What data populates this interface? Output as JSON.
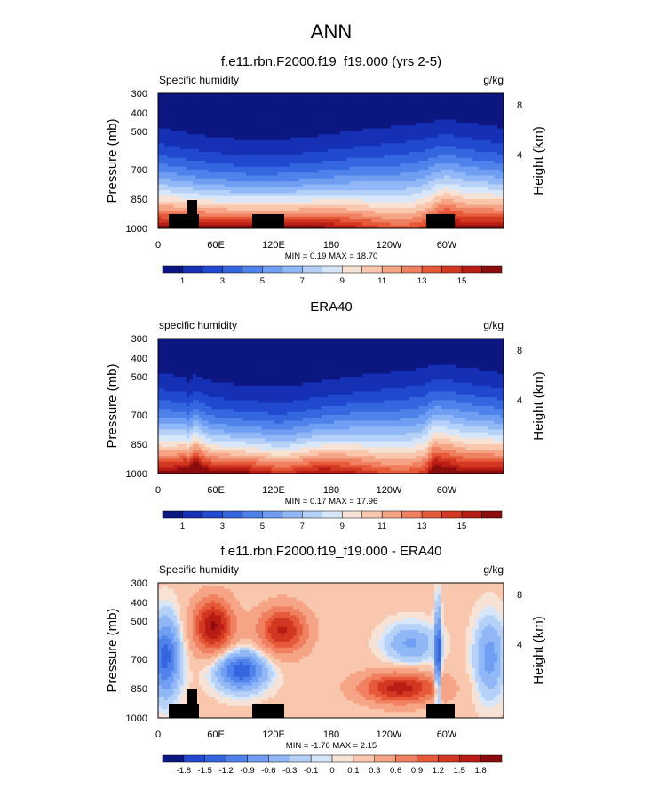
{
  "figure": {
    "title": "ANN",
    "right_axis_label": "Height (km)",
    "left_axis_label": "Pressure (mb)"
  },
  "chart_data": [
    {
      "type": "heatmap",
      "title": "f.e11.rbn.F2000.f19_f19.000 (yrs 2-5)",
      "variable_label": "Specific humidity",
      "units": "g/kg",
      "ylabel": "Pressure (mb)",
      "y2label": "Height (km)",
      "x_ticks": [
        "0",
        "60E",
        "120E",
        "180",
        "120W",
        "60W"
      ],
      "y_ticks": [
        "300",
        "400",
        "500",
        "700",
        "850",
        "1000"
      ],
      "y2_ticks": [
        "8",
        "4"
      ],
      "stats": "MIN =  0.19  MAX =  18.70",
      "colorbar_labels": [
        "1",
        "3",
        "5",
        "7",
        "9",
        "11",
        "13",
        "15"
      ],
      "levels": [
        1,
        2,
        3,
        4,
        5,
        6,
        7,
        8,
        9,
        10,
        11,
        12,
        13,
        14,
        15,
        16
      ]
    },
    {
      "type": "heatmap",
      "title": "ERA40",
      "variable_label": "specific humidity",
      "units": "g/kg",
      "ylabel": "Pressure (mb)",
      "y2label": "Height (km)",
      "x_ticks": [
        "0",
        "60E",
        "120E",
        "180",
        "120W",
        "60W"
      ],
      "y_ticks": [
        "300",
        "400",
        "500",
        "700",
        "850",
        "1000"
      ],
      "y2_ticks": [
        "8",
        "4"
      ],
      "stats": "MIN =  0.17  MAX =  17.96",
      "colorbar_labels": [
        "1",
        "3",
        "5",
        "7",
        "9",
        "11",
        "13",
        "15"
      ],
      "levels": [
        1,
        2,
        3,
        4,
        5,
        6,
        7,
        8,
        9,
        10,
        11,
        12,
        13,
        14,
        15,
        16
      ]
    },
    {
      "type": "heatmap",
      "title": "f.e11.rbn.F2000.f19_f19.000 - ERA40",
      "variable_label": "Specific humidity",
      "units": "g/kg",
      "ylabel": "Pressure (mb)",
      "y2label": "Height (km)",
      "x_ticks": [
        "0",
        "60E",
        "120E",
        "180",
        "120W",
        "60W"
      ],
      "y_ticks": [
        "300",
        "400",
        "500",
        "700",
        "850",
        "1000"
      ],
      "y2_ticks": [
        "8",
        "4"
      ],
      "stats": "MIN = -1.76  MAX =  2.15",
      "colorbar_labels": [
        "-1.8",
        "-1.5",
        "-1.2",
        "-0.9",
        "-0.6",
        "-0.3",
        "-0.1",
        "0",
        "0.1",
        "0.3",
        "0.6",
        "0.9",
        "1.2",
        "1.5",
        "1.8"
      ],
      "levels": [
        -1.8,
        -1.5,
        -1.2,
        -0.9,
        -0.6,
        -0.3,
        -0.1,
        0,
        0.1,
        0.3,
        0.6,
        0.9,
        1.2,
        1.5,
        1.8
      ]
    }
  ],
  "colors": {
    "palette": [
      "#0c1782",
      "#1530b4",
      "#2049d0",
      "#3466e0",
      "#4f82ea",
      "#6f9ef2",
      "#91b8f6",
      "#b6d1f8",
      "#d7e6f8",
      "#f7e2d6",
      "#f8c7ad",
      "#f6a486",
      "#f08160",
      "#e65a39",
      "#d23821",
      "#b81d15",
      "#8a0c0c"
    ],
    "terrain": "#000000"
  }
}
